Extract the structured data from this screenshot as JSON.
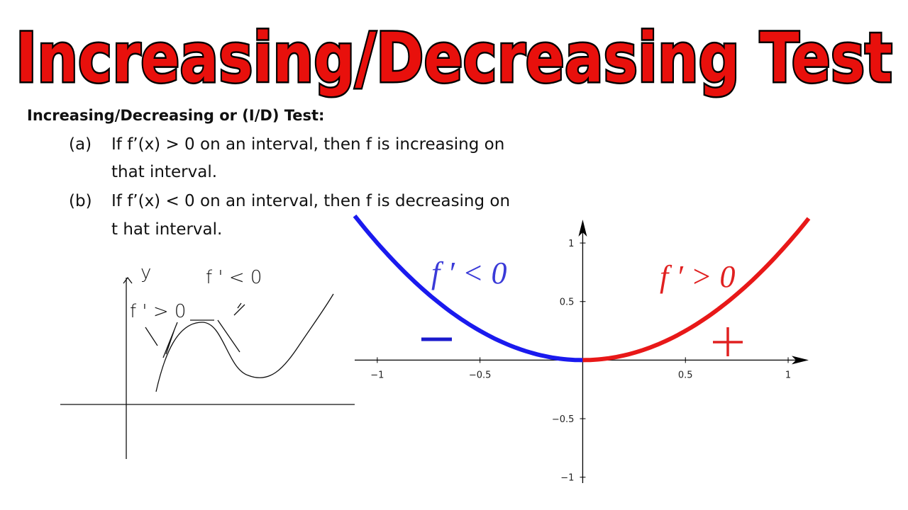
{
  "header": {
    "title": "Increasing/Decreasing Test"
  },
  "theorem": {
    "heading": "Increasing/Decreasing or (I/D) Test:",
    "items": [
      {
        "label": "(a)",
        "lines": [
          "If f’(x) > 0 on an interval, then f is increasing on",
          "that interval."
        ]
      },
      {
        "label": "(b)",
        "lines": [
          "If f’(x) < 0 on an interval, then f is decreasing on",
          "t hat interval."
        ]
      }
    ]
  },
  "sketch": {
    "labels": [
      "y",
      "f ' > 0",
      "f ' < 0"
    ]
  },
  "graph": {
    "annotations": [
      "f ′ < 0",
      "f ′ > 0"
    ],
    "xlim": [
      -1.11,
      1.1
    ],
    "ylim": [
      -1.05,
      1.2
    ],
    "xticks": [
      {
        "value": -1,
        "label": "−1"
      },
      {
        "value": -0.5,
        "label": "−0.5"
      },
      0.5,
      1
    ],
    "yticks": [
      1,
      0.5,
      {
        "value": -0.5,
        "label": "−0.5"
      },
      {
        "value": -1,
        "label": "−1"
      }
    ]
  }
}
